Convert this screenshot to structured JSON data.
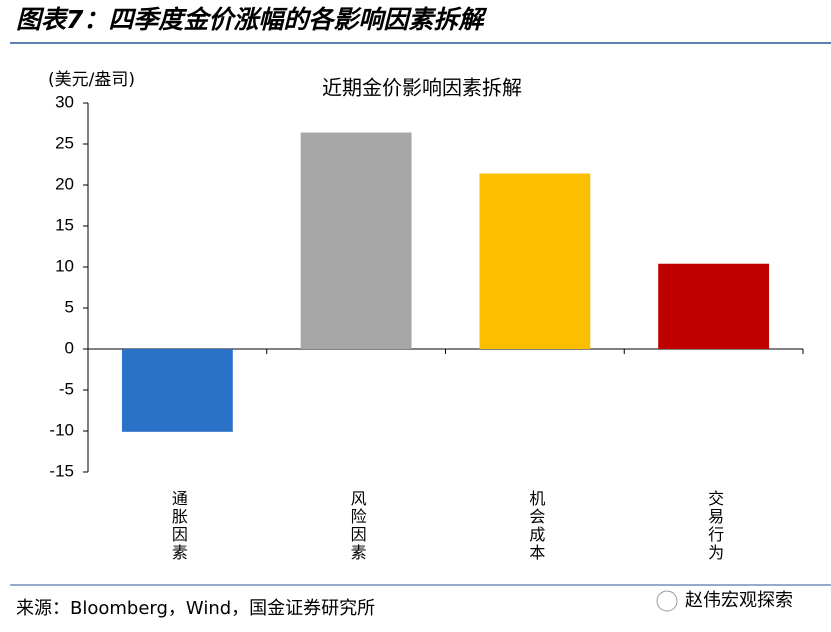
{
  "header": {
    "title": "图表7：四季度金价涨幅的各影响因素拆解"
  },
  "chart_data": {
    "type": "bar",
    "title": "近期金价影响因素拆解",
    "y_label": "(美元/盎司)",
    "categories": [
      "通胀因素",
      "风险因素",
      "机会成本",
      "交易行为"
    ],
    "values": [
      -10.1,
      26.4,
      21.4,
      10.4
    ],
    "colors": [
      "#2a72c8",
      "#a6a6a6",
      "#fcbf00",
      "#c00000"
    ],
    "ylim": [
      -15,
      30
    ],
    "yticks": [
      -15,
      -10,
      -5,
      0,
      5,
      10,
      15,
      20,
      25,
      30
    ]
  },
  "footer": {
    "source": "来源：Bloomberg，Wind，国金证券研究所",
    "watermark": "赵伟宏观探索"
  }
}
